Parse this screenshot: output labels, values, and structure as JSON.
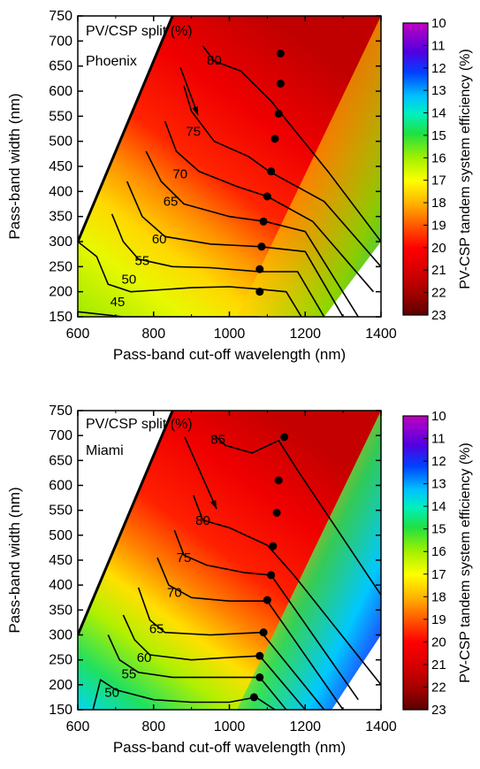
{
  "chart_data": [
    {
      "type": "heatmap",
      "title": "",
      "xlabel": "Pass-band cut-off wavelength (nm)",
      "ylabel": "Pass-band width (nm)",
      "xlim": [
        600,
        1400
      ],
      "ylim": [
        150,
        750
      ],
      "x_ticks": [
        "600",
        "800",
        "1000",
        "1200",
        "1400"
      ],
      "y_ticks": [
        "150",
        "200",
        "250",
        "300",
        "350",
        "400",
        "450",
        "500",
        "550",
        "600",
        "650",
        "700",
        "750"
      ],
      "colorbar_label": "PV-CSP tandem system efficiency (%)",
      "colorbar_ticks": [
        "10",
        "11",
        "12",
        "13",
        "14",
        "15",
        "16",
        "17",
        "18",
        "19",
        "20",
        "21",
        "22",
        "23"
      ],
      "annotation_title": "PV/CSP split (%)",
      "location": "Phoenix",
      "contours": [
        {
          "label": "45",
          "points": [
            [
              600,
              160
            ],
            [
              720,
              150
            ],
            [
              800,
              150
            ],
            [
              900,
              150
            ],
            [
              1000,
              150
            ],
            [
              1080,
              150
            ]
          ],
          "label_at": [
            705,
            180
          ]
        },
        {
          "label": "50",
          "points": [
            [
              600,
              300
            ],
            [
              650,
              270
            ],
            [
              680,
              215
            ],
            [
              740,
              200
            ],
            [
              800,
              203
            ],
            [
              900,
              208
            ],
            [
              1000,
              210
            ],
            [
              1080,
              205
            ],
            [
              1150,
              200
            ],
            [
              1190,
              150
            ]
          ],
          "label_at": [
            735,
            225
          ]
        },
        {
          "label": "55",
          "points": [
            [
              690,
              355
            ],
            [
              720,
              300
            ],
            [
              760,
              265
            ],
            [
              850,
              250
            ],
            [
              950,
              248
            ],
            [
              1080,
              240
            ],
            [
              1180,
              240
            ],
            [
              1250,
              150
            ]
          ],
          "label_at": [
            770,
            262
          ]
        },
        {
          "label": "60",
          "points": [
            [
              730,
              420
            ],
            [
              770,
              350
            ],
            [
              830,
              310
            ],
            [
              950,
              295
            ],
            [
              1080,
              290
            ],
            [
              1200,
              280
            ],
            [
              1300,
              150
            ]
          ],
          "label_at": [
            815,
            305
          ]
        },
        {
          "label": "65",
          "points": [
            [
              780,
              480
            ],
            [
              820,
              420
            ],
            [
              880,
              375
            ],
            [
              1000,
              350
            ],
            [
              1095,
              340
            ],
            [
              1200,
              320
            ],
            [
              1340,
              150
            ]
          ],
          "label_at": [
            845,
            380
          ]
        },
        {
          "label": "70",
          "points": [
            [
              830,
              540
            ],
            [
              860,
              480
            ],
            [
              920,
              440
            ],
            [
              1020,
              410
            ],
            [
              1100,
              390
            ],
            [
              1220,
              340
            ],
            [
              1380,
              200
            ]
          ],
          "label_at": [
            870,
            435
          ]
        },
        {
          "label": "75",
          "points": [
            [
              880,
              610
            ],
            [
              900,
              560
            ],
            [
              960,
              500
            ],
            [
              1050,
              470
            ],
            [
              1105,
              440
            ],
            [
              1250,
              380
            ],
            [
              1400,
              250
            ]
          ],
          "label_at": [
            905,
            520
          ]
        },
        {
          "label": "80",
          "points": [
            [
              930,
              690
            ],
            [
              960,
              660
            ],
            [
              1030,
              640
            ],
            [
              1110,
              580
            ],
            [
              1260,
              440
            ],
            [
              1400,
              300
            ]
          ],
          "label_at": [
            960,
            662
          ]
        }
      ],
      "optimal_points": [
        {
          "x": 1080,
          "y": 200
        },
        {
          "x": 1080,
          "y": 245
        },
        {
          "x": 1085,
          "y": 290
        },
        {
          "x": 1090,
          "y": 340
        },
        {
          "x": 1100,
          "y": 390
        },
        {
          "x": 1110,
          "y": 440
        },
        {
          "x": 1120,
          "y": 505
        },
        {
          "x": 1130,
          "y": 555
        },
        {
          "x": 1135,
          "y": 615
        },
        {
          "x": 1135,
          "y": 675
        }
      ]
    },
    {
      "type": "heatmap",
      "title": "",
      "xlabel": "Pass-band cut-off wavelength (nm)",
      "ylabel": "Pass-band width (nm)",
      "xlim": [
        600,
        1400
      ],
      "ylim": [
        150,
        750
      ],
      "x_ticks": [
        "600",
        "800",
        "1000",
        "1200",
        "1400"
      ],
      "y_ticks": [
        "150",
        "200",
        "250",
        "300",
        "350",
        "400",
        "450",
        "500",
        "550",
        "600",
        "650",
        "700",
        "750"
      ],
      "colorbar_label": "PV-CSP tandem system efficiency (%)",
      "colorbar_ticks": [
        "10",
        "11",
        "12",
        "13",
        "14",
        "15",
        "16",
        "17",
        "18",
        "19",
        "20",
        "21",
        "22",
        "23"
      ],
      "annotation_title": "PV/CSP split (%)",
      "location": "Miami",
      "contours": [
        {
          "label": "50",
          "points": [
            [
              640,
              150
            ],
            [
              660,
              210
            ],
            [
              700,
              190
            ],
            [
              800,
              170
            ],
            [
              900,
              165
            ],
            [
              1000,
              165
            ],
            [
              1070,
              175
            ],
            [
              1120,
              150
            ]
          ],
          "label_at": [
            690,
            185
          ]
        },
        {
          "label": "55",
          "points": [
            [
              680,
              300
            ],
            [
              710,
              250
            ],
            [
              760,
              225
            ],
            [
              850,
              215
            ],
            [
              1000,
              215
            ],
            [
              1080,
              215
            ],
            [
              1150,
              150
            ]
          ],
          "label_at": [
            735,
            222
          ]
        },
        {
          "label": "60",
          "points": [
            [
              720,
              340
            ],
            [
              750,
              290
            ],
            [
              790,
              260
            ],
            [
              900,
              250
            ],
            [
              1000,
              255
            ],
            [
              1080,
              258
            ],
            [
              1200,
              150
            ]
          ],
          "label_at": [
            775,
            255
          ]
        },
        {
          "label": "65",
          "points": [
            [
              760,
              395
            ],
            [
              790,
              330
            ],
            [
              830,
              305
            ],
            [
              950,
              300
            ],
            [
              1085,
              305
            ],
            [
              1250,
              150
            ]
          ],
          "label_at": [
            808,
            312
          ]
        },
        {
          "label": "70",
          "points": [
            [
              810,
              455
            ],
            [
              840,
              400
            ],
            [
              900,
              375
            ],
            [
              1000,
              368
            ],
            [
              1100,
              368
            ],
            [
              1300,
              150
            ]
          ],
          "label_at": [
            855,
            385
          ]
        },
        {
          "label": "75",
          "points": [
            [
              855,
              510
            ],
            [
              880,
              460
            ],
            [
              940,
              440
            ],
            [
              1040,
              425
            ],
            [
              1110,
              420
            ],
            [
              1340,
              170
            ]
          ],
          "label_at": [
            880,
            455
          ]
        },
        {
          "label": "80",
          "points": [
            [
              905,
              580
            ],
            [
              930,
              530
            ],
            [
              1000,
              515
            ],
            [
              1100,
              480
            ],
            [
              1170,
              420
            ],
            [
              1400,
              200
            ]
          ],
          "label_at": [
            930,
            530
          ]
        },
        {
          "label": "85",
          "points": [
            [
              960,
              700
            ],
            [
              990,
              680
            ],
            [
              1060,
              665
            ],
            [
              1130,
              690
            ],
            [
              1180,
              630
            ],
            [
              1400,
              380
            ]
          ],
          "label_at": [
            970,
            692
          ]
        }
      ],
      "optimal_points": [
        {
          "x": 1065,
          "y": 175
        },
        {
          "x": 1080,
          "y": 215
        },
        {
          "x": 1080,
          "y": 258
        },
        {
          "x": 1090,
          "y": 305
        },
        {
          "x": 1100,
          "y": 370
        },
        {
          "x": 1110,
          "y": 420
        },
        {
          "x": 1115,
          "y": 478
        },
        {
          "x": 1125,
          "y": 545
        },
        {
          "x": 1130,
          "y": 610
        },
        {
          "x": 1145,
          "y": 697
        }
      ]
    }
  ]
}
